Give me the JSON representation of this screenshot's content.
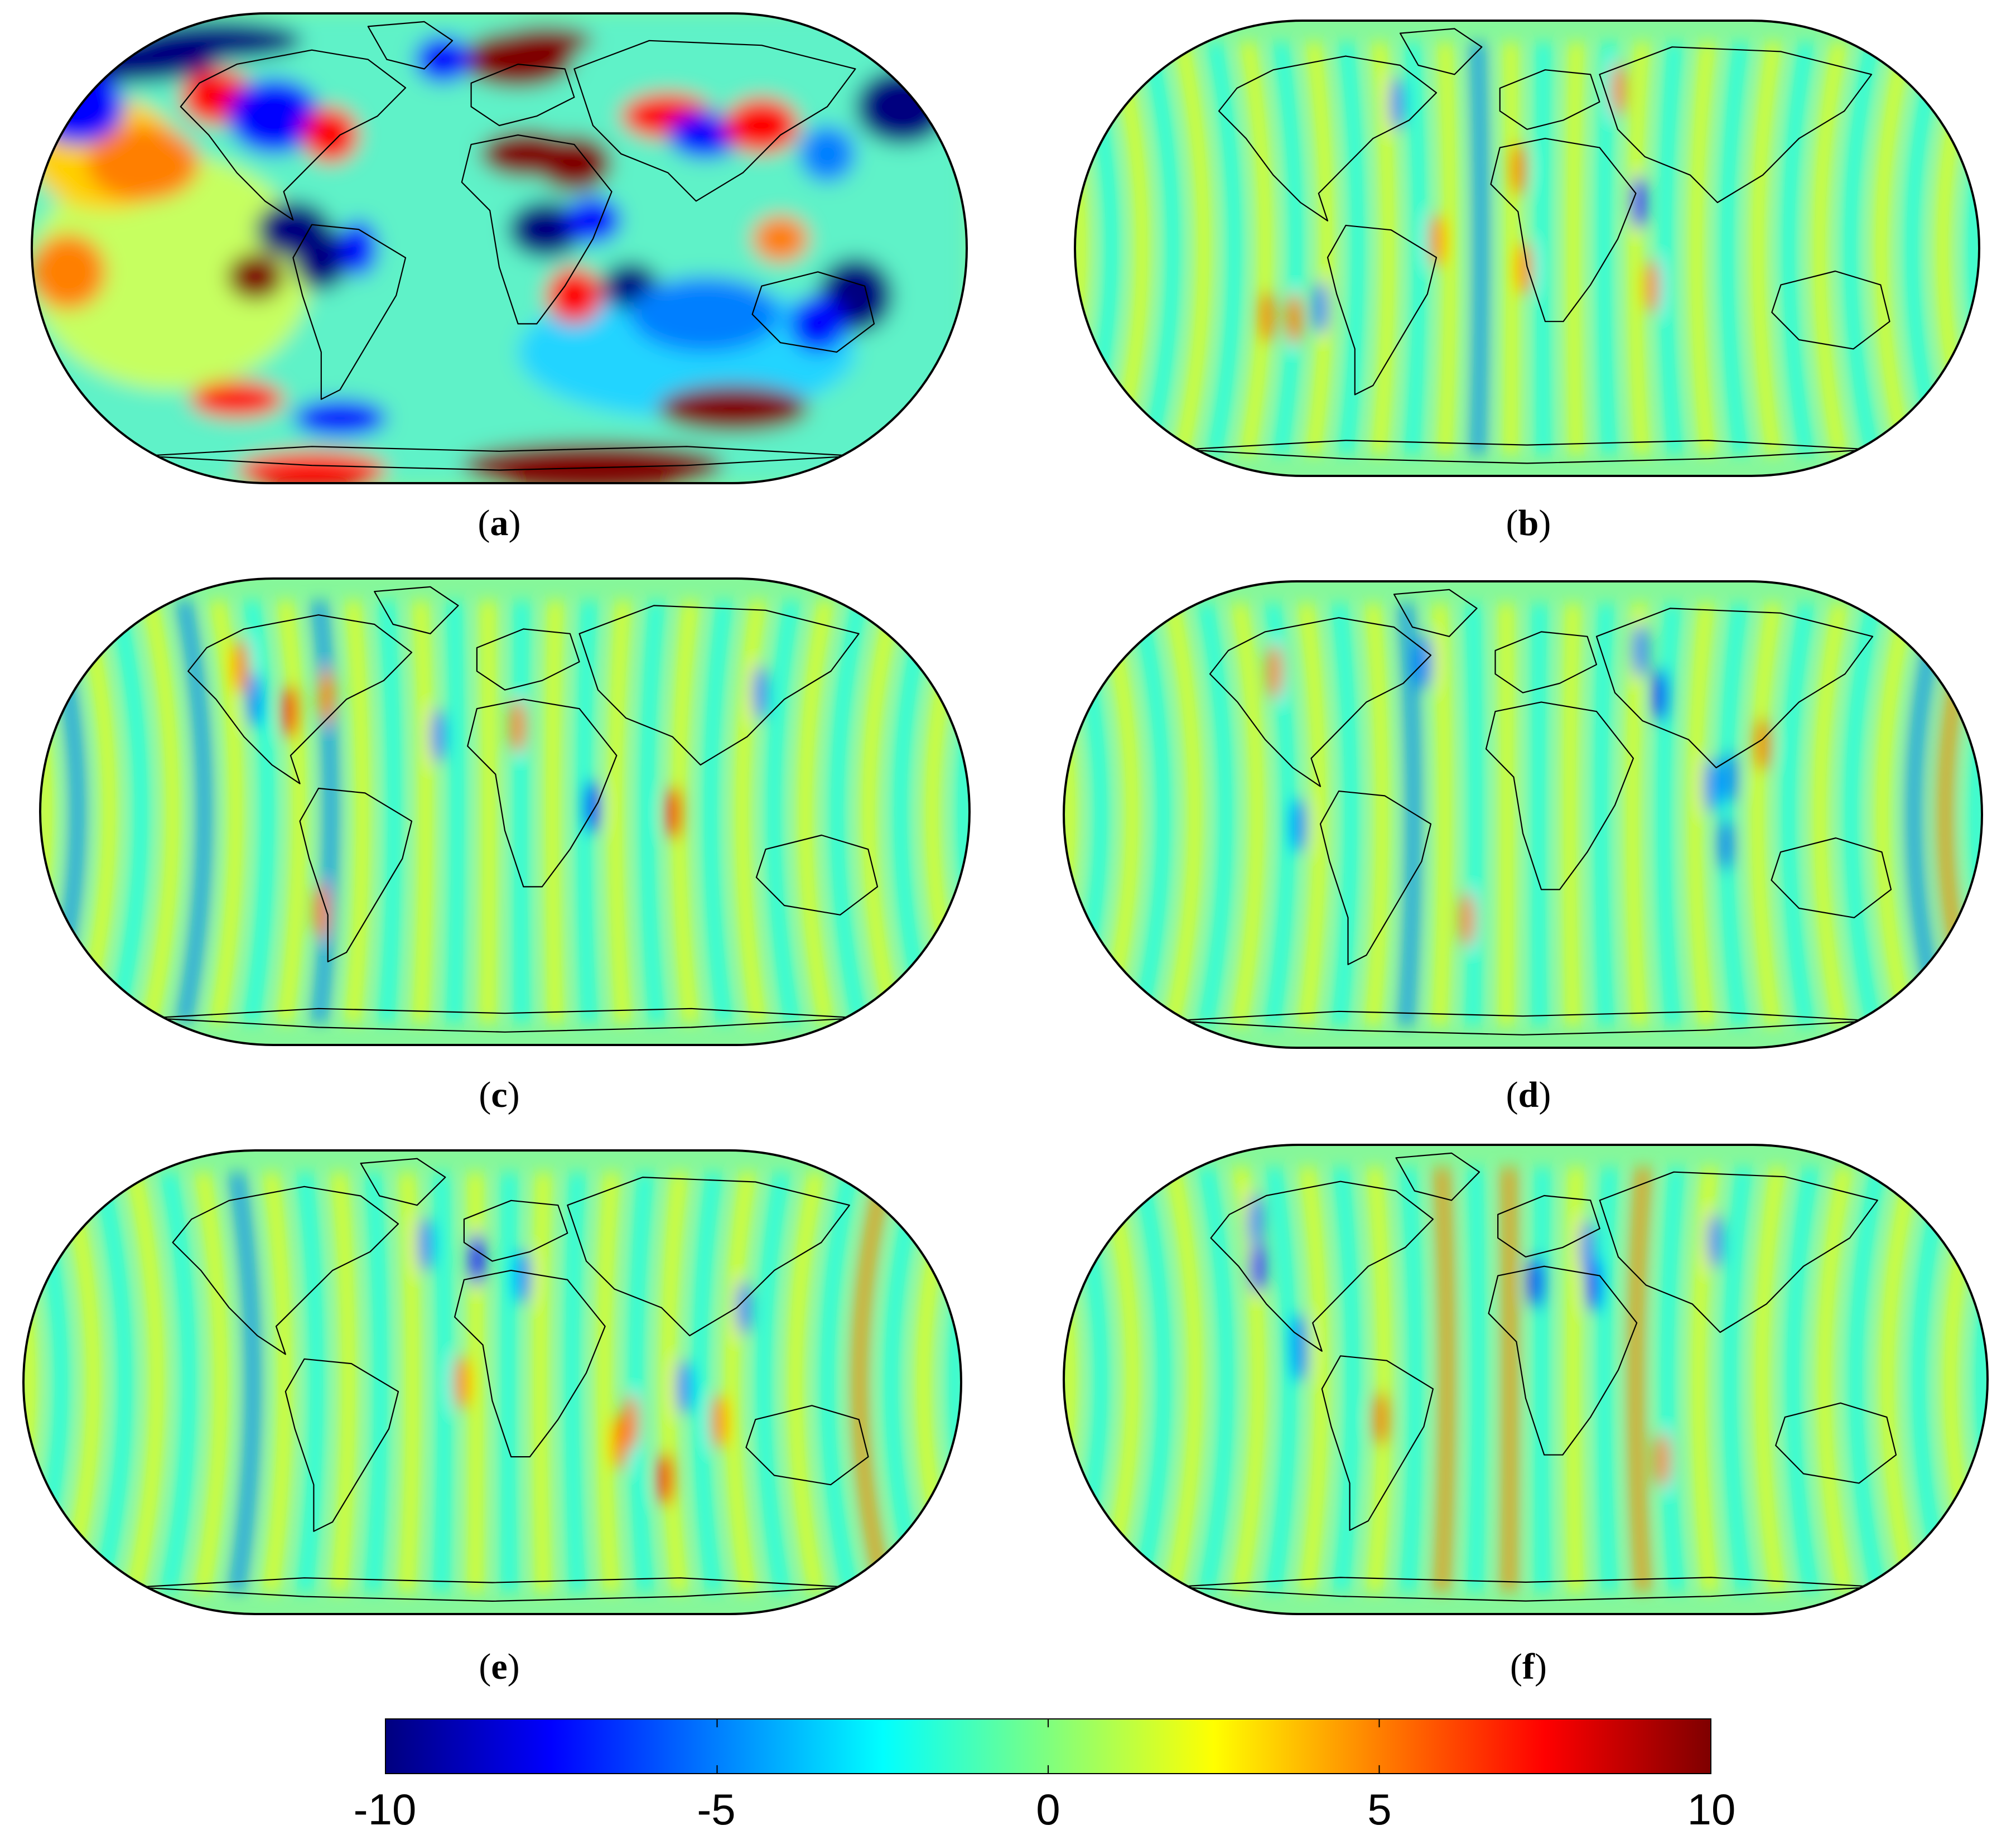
{
  "figure": {
    "panels": [
      {
        "id": "a",
        "label_open": "(",
        "label_letter": "a",
        "label_close": ")",
        "pattern": "strong"
      },
      {
        "id": "b",
        "label_open": "(",
        "label_letter": "b",
        "label_close": ")",
        "pattern": "stripes"
      },
      {
        "id": "c",
        "label_open": "(",
        "label_letter": "c",
        "label_close": ")",
        "pattern": "stripes"
      },
      {
        "id": "d",
        "label_open": "(",
        "label_letter": "d",
        "label_close": ")",
        "pattern": "stripes"
      },
      {
        "id": "e",
        "label_open": "(",
        "label_letter": "e",
        "label_close": ")",
        "pattern": "stripes"
      },
      {
        "id": "f",
        "label_open": "(",
        "label_letter": "f",
        "label_close": ")",
        "pattern": "stripes"
      }
    ]
  },
  "colorbar": {
    "min": -10,
    "max": 10,
    "ticks": [
      "-10",
      "-5",
      "0",
      "5",
      "10"
    ],
    "tick_values": [
      -10,
      -5,
      0,
      5,
      10
    ],
    "colormap": "jet",
    "colors": [
      "#00007f",
      "#0000ff",
      "#007fff",
      "#00ffff",
      "#7fff7f",
      "#ffff00",
      "#ff7f00",
      "#ff0000",
      "#7f0000"
    ]
  }
}
